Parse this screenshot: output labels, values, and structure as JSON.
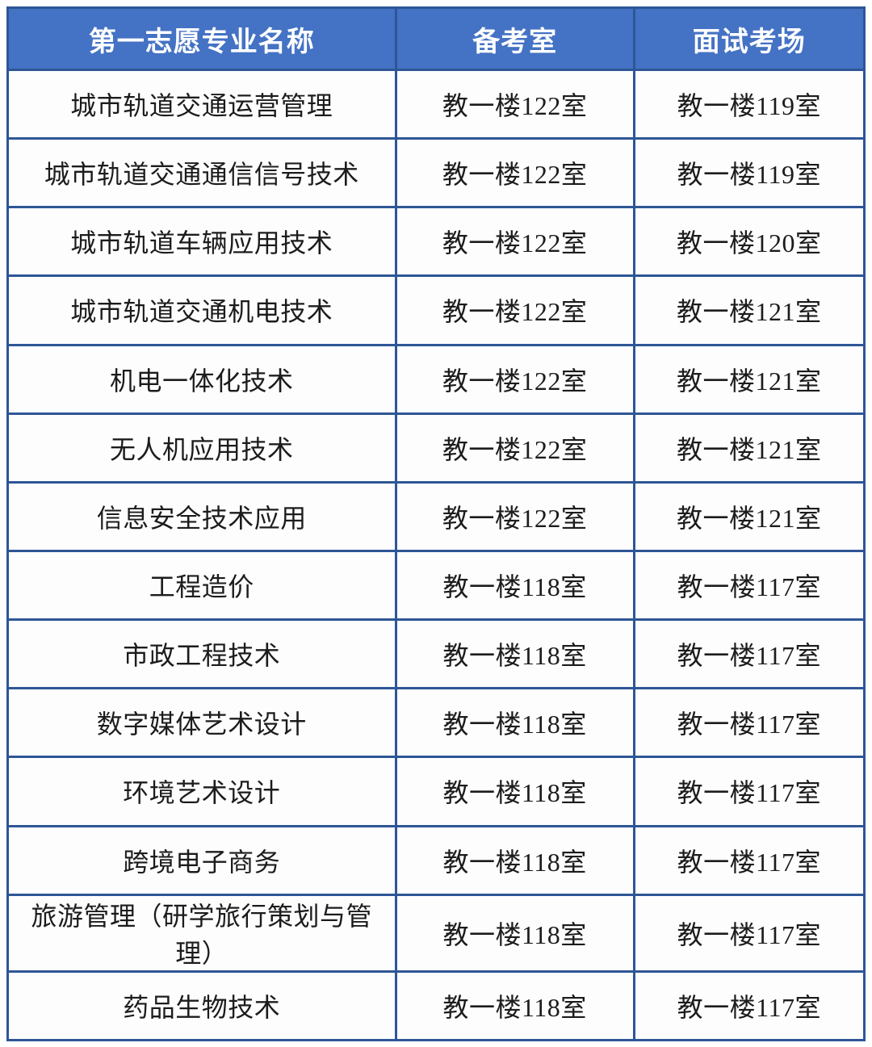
{
  "table": {
    "columns": [
      {
        "label": "第一志愿专业名称"
      },
      {
        "label": "备考室"
      },
      {
        "label": "面试考场"
      }
    ],
    "rows": [
      [
        "城市轨道交通运营管理",
        "教一楼122室",
        "教一楼119室"
      ],
      [
        "城市轨道交通通信信号技术",
        "教一楼122室",
        "教一楼119室"
      ],
      [
        "城市轨道车辆应用技术",
        "教一楼122室",
        "教一楼120室"
      ],
      [
        "城市轨道交通机电技术",
        "教一楼122室",
        "教一楼121室"
      ],
      [
        "机电一体化技术",
        "教一楼122室",
        "教一楼121室"
      ],
      [
        "无人机应用技术",
        "教一楼122室",
        "教一楼121室"
      ],
      [
        "信息安全技术应用",
        "教一楼122室",
        "教一楼121室"
      ],
      [
        "工程造价",
        "教一楼118室",
        "教一楼117室"
      ],
      [
        "市政工程技术",
        "教一楼118室",
        "教一楼117室"
      ],
      [
        "数字媒体艺术设计",
        "教一楼118室",
        "教一楼117室"
      ],
      [
        "环境艺术设计",
        "教一楼118室",
        "教一楼117室"
      ],
      [
        "跨境电子商务",
        "教一楼118室",
        "教一楼117室"
      ],
      [
        "旅游管理（研学旅行策划与管理）",
        "教一楼118室",
        "教一楼117室"
      ],
      [
        "药品生物技术",
        "教一楼118室",
        "教一楼117室"
      ]
    ]
  },
  "colors": {
    "header_bg": "#4472C4",
    "header_text": "#FFFFFF",
    "border": "#2E5696",
    "body_bg": "#FDFDFE",
    "body_text": "#1C1C1C"
  }
}
